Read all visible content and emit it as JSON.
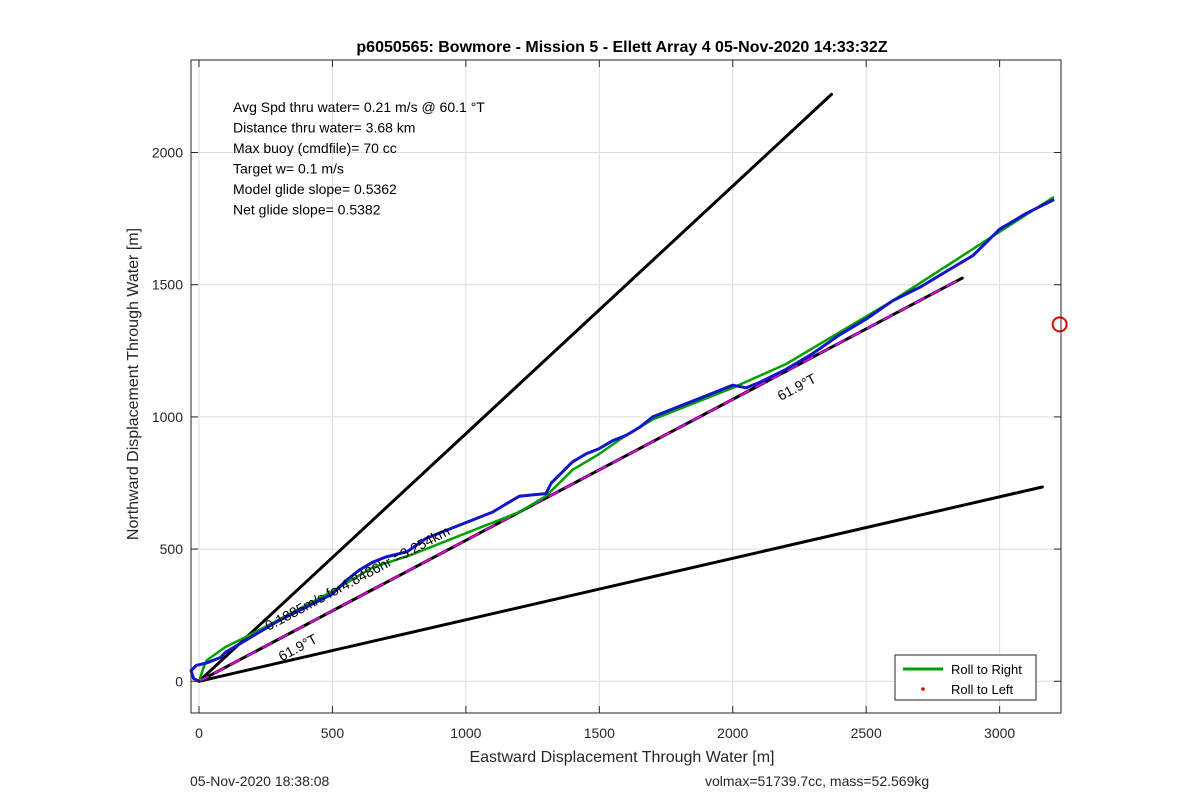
{
  "chart_data": {
    "type": "line",
    "title": "p6050565: Bowmore - Mission 5 - Ellett Array 4 05-Nov-2020 14:33:32Z",
    "xlabel": "Eastward Displacement Through Water [m]",
    "ylabel": "Northward Displacement Through Water [m]",
    "xlim": [
      -30,
      3230
    ],
    "ylim": [
      -120,
      2350
    ],
    "xticks": [
      0,
      500,
      1000,
      1500,
      2000,
      2500,
      3000
    ],
    "yticks": [
      0,
      500,
      1000,
      1500,
      2000
    ],
    "grid": true,
    "legend_position": "bottom-right",
    "legend": [
      {
        "label": "Roll to Right",
        "color": "#00a000",
        "style": "line"
      },
      {
        "label": "Roll to Left",
        "color": "#e00000",
        "style": "dot"
      }
    ],
    "stats": [
      "Avg Spd thru water=  0.21 m/s @  60.1 °T",
      "Distance thru water=  3.68 km",
      "Max buoy (cmdfile)= 70 cc",
      "Target w= 0.1 m/s",
      "Model glide slope= 0.5362",
      "Net glide slope= 0.5382"
    ],
    "series": [
      {
        "color": "#000000",
        "style": "solid",
        "width": 3,
        "x": [
          0,
          2370
        ],
        "y": [
          0,
          2220
        ]
      },
      {
        "color": "#000000",
        "style": "solid",
        "width": 3,
        "x": [
          0,
          3160
        ],
        "y": [
          0,
          735
        ]
      },
      {
        "color": "#000000",
        "style": "solid",
        "width": 3,
        "x": [
          0,
          2860
        ],
        "y": [
          0,
          1525
        ]
      },
      {
        "color": "#e000e0",
        "style": "dashed",
        "width": 2,
        "x": [
          0,
          2860
        ],
        "y": [
          0,
          1525
        ]
      },
      {
        "color": "#00a000",
        "style": "solid",
        "width": 2.5,
        "x": [
          0,
          20,
          30,
          100,
          200,
          350,
          500,
          650,
          800,
          1000,
          1200,
          1300,
          1400,
          1500,
          1600,
          1700,
          1800,
          2000,
          2200,
          2400,
          2600,
          2800,
          3000,
          3200
        ],
        "y": [
          0,
          60,
          80,
          130,
          180,
          260,
          340,
          430,
          480,
          560,
          640,
          700,
          800,
          860,
          930,
          990,
          1030,
          1110,
          1200,
          1320,
          1440,
          1570,
          1700,
          1830
        ]
      },
      {
        "color": "#1414c8",
        "style": "solid",
        "width": 3,
        "x": [
          0,
          -20,
          -30,
          -10,
          30,
          80,
          100,
          150,
          200,
          300,
          400,
          500,
          550,
          600,
          650,
          700,
          780,
          850,
          950,
          1050,
          1100,
          1150,
          1200,
          1250,
          1300,
          1320,
          1350,
          1400,
          1450,
          1500,
          1550,
          1600,
          1650,
          1700,
          1800,
          1900,
          2000,
          2050,
          2100,
          2200,
          2300,
          2400,
          2500,
          2600,
          2700,
          2800,
          2900,
          2950,
          3000,
          3050,
          3100,
          3200
        ],
        "y": [
          0,
          10,
          40,
          60,
          70,
          90,
          110,
          140,
          170,
          230,
          280,
          330,
          380,
          420,
          450,
          470,
          490,
          540,
          580,
          620,
          640,
          670,
          700,
          705,
          710,
          750,
          780,
          830,
          860,
          880,
          910,
          930,
          960,
          1000,
          1040,
          1080,
          1120,
          1110,
          1130,
          1180,
          1240,
          1310,
          1370,
          1440,
          1490,
          1550,
          1610,
          1660,
          1710,
          1740,
          1770,
          1820
        ]
      }
    ],
    "markers": [
      {
        "x": 3225,
        "y": 1350,
        "color": "#e00000",
        "shape": "circle"
      }
    ],
    "annotations": [
      {
        "text": "61.9°T",
        "x": 2180,
        "y": 1060,
        "angle": -28
      },
      {
        "text": "61.9°T",
        "x": 310,
        "y": 75,
        "angle": -28
      },
      {
        "text": "0.1885m/s for4.8486hr =3.254km",
        "x": 260,
        "y": 190,
        "angle": -28
      }
    ]
  },
  "footer": {
    "left": "05-Nov-2020 18:38:08",
    "right": "volmax=51739.7cc, mass=52.569kg"
  }
}
